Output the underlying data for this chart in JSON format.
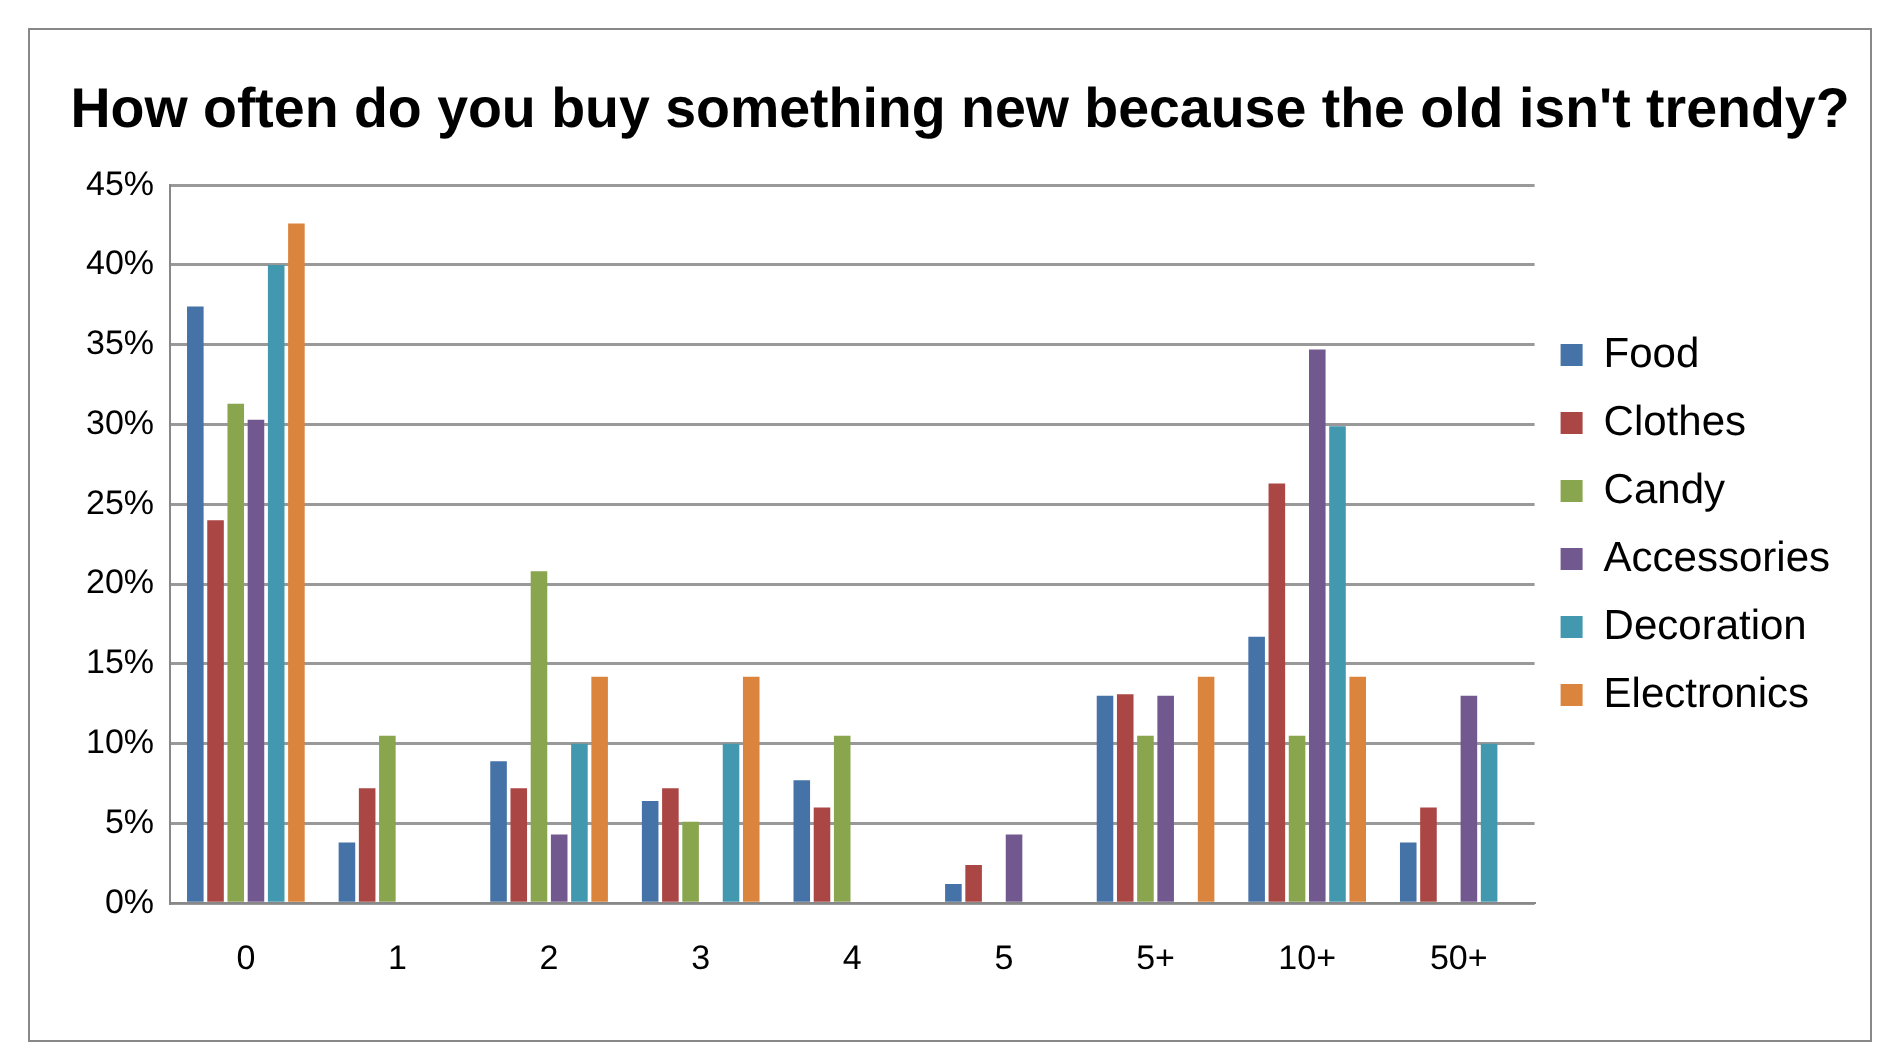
{
  "chart_data": {
    "type": "bar",
    "title": "How often do you buy something new because the old isn't trendy?",
    "categories": [
      "0",
      "1",
      "2",
      "3",
      "4",
      "5",
      "5+",
      "10+",
      "50+"
    ],
    "series": [
      {
        "name": "Food",
        "color": "#4572a7",
        "values": [
          37.4,
          3.8,
          8.9,
          6.4,
          7.7,
          1.2,
          13.0,
          16.7,
          3.8
        ]
      },
      {
        "name": "Clothes",
        "color": "#aa4643",
        "values": [
          24.0,
          7.2,
          7.2,
          7.2,
          6.0,
          2.4,
          13.1,
          26.3,
          6.0
        ]
      },
      {
        "name": "Candy",
        "color": "#89a54e",
        "values": [
          31.3,
          10.5,
          20.8,
          5.1,
          10.5,
          null,
          10.5,
          10.5,
          null
        ]
      },
      {
        "name": "Accessories",
        "color": "#71588f",
        "values": [
          30.3,
          null,
          4.3,
          null,
          null,
          4.3,
          13.0,
          34.7,
          13.0
        ]
      },
      {
        "name": "Decoration",
        "color": "#4198af",
        "values": [
          40.0,
          null,
          10.0,
          10.0,
          null,
          null,
          null,
          29.9,
          10.0
        ]
      },
      {
        "name": "Electronics",
        "color": "#db843d",
        "values": [
          42.6,
          null,
          14.2,
          14.2,
          null,
          null,
          14.2,
          14.2,
          null
        ]
      }
    ],
    "ylim": [
      0,
      45
    ],
    "yticks": [
      {
        "value": 0,
        "label": "0%"
      },
      {
        "value": 5,
        "label": "5%"
      },
      {
        "value": 10,
        "label": "10%"
      },
      {
        "value": 15,
        "label": "15%"
      },
      {
        "value": 20,
        "label": "20%"
      },
      {
        "value": 25,
        "label": "25%"
      },
      {
        "value": 30,
        "label": "30%"
      },
      {
        "value": 35,
        "label": "35%"
      },
      {
        "value": 40,
        "label": "40%"
      },
      {
        "value": 45,
        "label": "45%"
      }
    ],
    "grid": "y",
    "legend": "right"
  }
}
